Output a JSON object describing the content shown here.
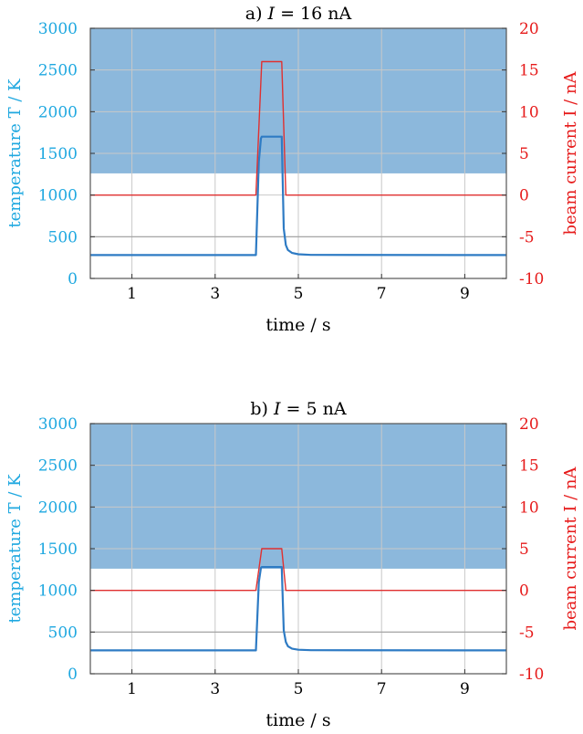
{
  "chart_data": [
    {
      "type": "line",
      "title": {
        "prefix": "a)",
        "symbol": "I",
        "rest": "= 16 nA"
      },
      "xlabel": "time / s",
      "ylabel_left": "temperature T / K",
      "ylabel_right": "beam current I / nA",
      "xlim": [
        0,
        10
      ],
      "ylim_left": [
        0,
        3000
      ],
      "ylim_right": [
        -10,
        20
      ],
      "xticks": [
        1,
        3,
        5,
        7,
        9
      ],
      "yticks_left": [
        0,
        500,
        1000,
        1500,
        2000,
        2500,
        3000
      ],
      "yticks_right": [
        -10,
        -5,
        0,
        5,
        10,
        15,
        20
      ],
      "grid": true,
      "shaded_region_temperature": [
        1260,
        3000
      ],
      "reference_line_temperature": 500,
      "colors": {
        "temperature": "#2e7bc4",
        "current": "#e03030",
        "shade": "#8cb8dc",
        "left_axis": "#1fa8e0",
        "right_axis": "#e61a1a"
      },
      "series": [
        {
          "axis": "left",
          "x": [
            0,
            3.98,
            4.05,
            4.1,
            4.12,
            4.6,
            4.65,
            4.7,
            4.75,
            4.85,
            5.0,
            5.3,
            10
          ],
          "y": [
            280,
            280,
            1400,
            1680,
            1700,
            1700,
            600,
            400,
            340,
            305,
            290,
            282,
            280
          ]
        },
        {
          "axis": "right",
          "x": [
            0,
            3.98,
            4.12,
            4.6,
            4.7,
            10
          ],
          "y": [
            0,
            0,
            16,
            16,
            0,
            0
          ]
        }
      ]
    },
    {
      "type": "line",
      "title": {
        "prefix": "b)",
        "symbol": "I",
        "rest": "= 5 nA"
      },
      "xlabel": "time / s",
      "ylabel_left": "temperature T / K",
      "ylabel_right": "beam current I / nA",
      "xlim": [
        0,
        10
      ],
      "ylim_left": [
        0,
        3000
      ],
      "ylim_right": [
        -10,
        20
      ],
      "xticks": [
        1,
        3,
        5,
        7,
        9
      ],
      "yticks_left": [
        0,
        500,
        1000,
        1500,
        2000,
        2500,
        3000
      ],
      "yticks_right": [
        -10,
        -5,
        0,
        5,
        10,
        15,
        20
      ],
      "grid": true,
      "shaded_region_temperature": [
        1260,
        3000
      ],
      "reference_line_temperature": 500,
      "colors": {
        "temperature": "#2e7bc4",
        "current": "#e03030",
        "shade": "#8cb8dc",
        "left_axis": "#1fa8e0",
        "right_axis": "#e61a1a"
      },
      "series": [
        {
          "axis": "left",
          "x": [
            0,
            3.98,
            4.05,
            4.1,
            4.12,
            4.6,
            4.65,
            4.7,
            4.75,
            4.85,
            5.0,
            5.3,
            10
          ],
          "y": [
            280,
            280,
            1100,
            1270,
            1280,
            1280,
            520,
            380,
            330,
            300,
            288,
            282,
            280
          ]
        },
        {
          "axis": "right",
          "x": [
            0,
            3.98,
            4.12,
            4.6,
            4.7,
            10
          ],
          "y": [
            0,
            0,
            5,
            5,
            0,
            0
          ]
        }
      ]
    }
  ]
}
